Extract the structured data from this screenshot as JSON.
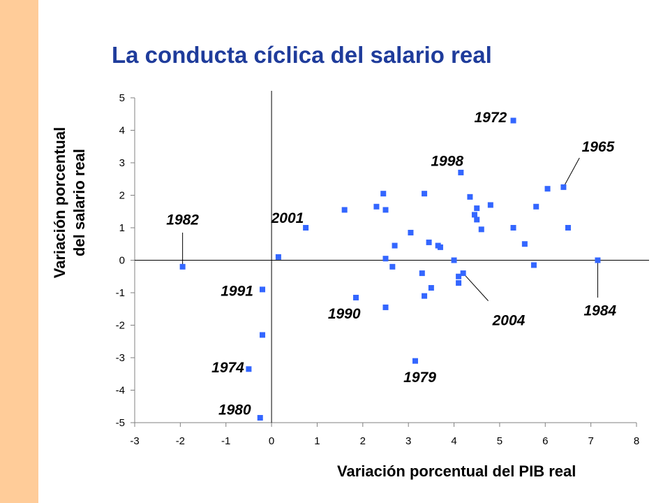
{
  "colors": {
    "side_band": "#FFCC99",
    "title": "#1F3C9B",
    "point": "#3366FF",
    "axis": "#000000"
  },
  "chart_data": {
    "type": "scatter",
    "title": "La conducta cíclica del salario real",
    "xlabel": "Variación porcentual del PIB real",
    "ylabel_lines": [
      "Variación porcentual",
      "del salario real"
    ],
    "xlim": [
      -3,
      8
    ],
    "ylim": [
      -5,
      5
    ],
    "x_ticks": [
      "-3",
      "-2",
      "-1",
      "0",
      "1",
      "2",
      "3",
      "4",
      "5",
      "6",
      "7",
      "8"
    ],
    "y_ticks": [
      "5",
      "4",
      "3",
      "2",
      "1",
      "0",
      "-1",
      "-2",
      "-3",
      "-4",
      "-5"
    ],
    "grid": false,
    "points": [
      {
        "x": -1.95,
        "y": -0.2
      },
      {
        "x": -0.2,
        "y": -0.9
      },
      {
        "x": -0.2,
        "y": -2.3
      },
      {
        "x": -0.5,
        "y": -3.35
      },
      {
        "x": -0.25,
        "y": -4.85
      },
      {
        "x": 0.15,
        "y": 0.1
      },
      {
        "x": 0.75,
        "y": 1.0
      },
      {
        "x": 1.6,
        "y": 1.55
      },
      {
        "x": 1.85,
        "y": -1.15
      },
      {
        "x": 2.3,
        "y": 1.65
      },
      {
        "x": 2.45,
        "y": 2.05
      },
      {
        "x": 2.5,
        "y": 1.55
      },
      {
        "x": 2.5,
        "y": 0.05
      },
      {
        "x": 2.5,
        "y": -1.45
      },
      {
        "x": 2.65,
        "y": -0.2
      },
      {
        "x": 2.7,
        "y": 0.45
      },
      {
        "x": 3.05,
        "y": 0.85
      },
      {
        "x": 3.15,
        "y": -3.1
      },
      {
        "x": 3.3,
        "y": -0.4
      },
      {
        "x": 3.35,
        "y": 2.05
      },
      {
        "x": 3.35,
        "y": -1.1
      },
      {
        "x": 3.45,
        "y": 0.55
      },
      {
        "x": 3.5,
        "y": -0.85
      },
      {
        "x": 3.65,
        "y": 0.45
      },
      {
        "x": 3.7,
        "y": 0.4
      },
      {
        "x": 4.0,
        "y": 0.0
      },
      {
        "x": 4.1,
        "y": -0.5
      },
      {
        "x": 4.1,
        "y": -0.7
      },
      {
        "x": 4.15,
        "y": 2.7
      },
      {
        "x": 4.2,
        "y": -0.4
      },
      {
        "x": 4.35,
        "y": 1.95
      },
      {
        "x": 4.45,
        "y": 1.4
      },
      {
        "x": 4.5,
        "y": 1.6
      },
      {
        "x": 4.5,
        "y": 1.25
      },
      {
        "x": 4.6,
        "y": 0.95
      },
      {
        "x": 4.8,
        "y": 1.7
      },
      {
        "x": 5.3,
        "y": 4.3
      },
      {
        "x": 5.3,
        "y": 1.0
      },
      {
        "x": 5.55,
        "y": 0.5
      },
      {
        "x": 5.75,
        "y": -0.15
      },
      {
        "x": 5.8,
        "y": 1.65
      },
      {
        "x": 6.05,
        "y": 2.2
      },
      {
        "x": 6.4,
        "y": 2.25
      },
      {
        "x": 6.5,
        "y": 1.0
      },
      {
        "x": 7.15,
        "y": 0.0
      }
    ],
    "annotations": [
      {
        "text": "1972",
        "x": 4.8,
        "y": 4.4,
        "anchor": "middle"
      },
      {
        "text": "1965",
        "x": 6.8,
        "y": 3.5,
        "anchor": "start",
        "leader_to": {
          "x": 6.4,
          "y": 2.25
        },
        "leader_from": {
          "x": 6.75,
          "y": 3.15
        }
      },
      {
        "text": "1998",
        "x": 3.85,
        "y": 3.05,
        "anchor": "middle"
      },
      {
        "text": "1982",
        "x": -1.95,
        "y": 1.25,
        "anchor": "middle",
        "leader_to": {
          "x": -1.95,
          "y": -0.2
        },
        "leader_from": {
          "x": -1.95,
          "y": 0.85
        }
      },
      {
        "text": "2001",
        "x": 0.35,
        "y": 1.3,
        "anchor": "middle"
      },
      {
        "text": "1991",
        "x": -0.4,
        "y": -0.95,
        "anchor": "end"
      },
      {
        "text": "1990",
        "x": 1.95,
        "y": -1.65,
        "anchor": "end"
      },
      {
        "text": "2004",
        "x": 5.2,
        "y": -1.85,
        "anchor": "middle",
        "leader_to": {
          "x": 4.2,
          "y": -0.4
        },
        "leader_from": {
          "x": 4.75,
          "y": -1.25
        }
      },
      {
        "text": "1984",
        "x": 7.2,
        "y": -1.55,
        "anchor": "middle",
        "leader_to": {
          "x": 7.15,
          "y": 0.0
        },
        "leader_from": {
          "x": 7.15,
          "y": -1.15
        }
      },
      {
        "text": "1974",
        "x": -0.6,
        "y": -3.3,
        "anchor": "end"
      },
      {
        "text": "1979",
        "x": 3.25,
        "y": -3.6,
        "anchor": "middle"
      },
      {
        "text": "1980",
        "x": -0.45,
        "y": -4.6,
        "anchor": "end"
      }
    ]
  }
}
